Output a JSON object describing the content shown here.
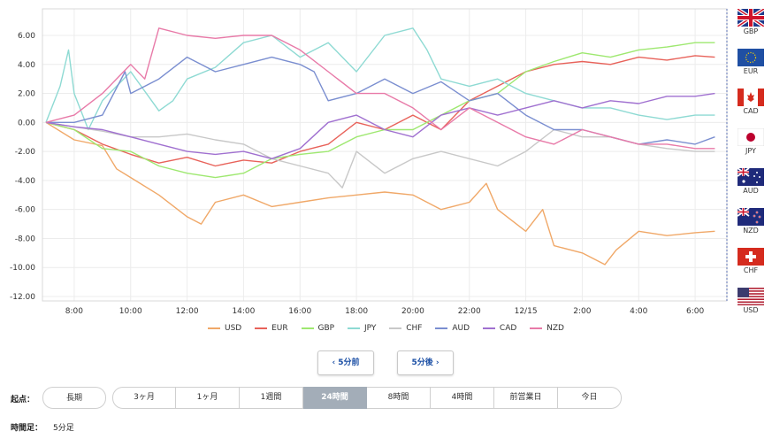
{
  "chart_data": {
    "type": "line",
    "title": "",
    "xlabel": "",
    "ylabel": "",
    "ylim": [
      -12,
      8
    ],
    "y_ticks": [
      "6.00",
      "4.00",
      "2.00",
      "0.00",
      "-2.00",
      "-4.00",
      "-6.00",
      "-8.00",
      "-10.00",
      "-12.00"
    ],
    "x_ticks": [
      "8:00",
      "10:00",
      "12:00",
      "14:00",
      "16:00",
      "18:00",
      "20:00",
      "22:00",
      "12/15",
      "2:00",
      "4:00",
      "6:00"
    ],
    "x_tick_hours": [
      1,
      3,
      5,
      7,
      9,
      11,
      13,
      15,
      17,
      19,
      21,
      23
    ],
    "x_range_hours": [
      0,
      24
    ],
    "grid": true,
    "series": [
      {
        "name": "USD",
        "color": "#f0a868",
        "points": [
          [
            0,
            0
          ],
          [
            1,
            -1.2
          ],
          [
            2,
            -1.6
          ],
          [
            2.5,
            -3.2
          ],
          [
            3,
            -3.8
          ],
          [
            4,
            -5.0
          ],
          [
            5,
            -6.5
          ],
          [
            5.5,
            -7.0
          ],
          [
            6,
            -5.5
          ],
          [
            7,
            -5.0
          ],
          [
            8,
            -5.8
          ],
          [
            9,
            -5.5
          ],
          [
            10,
            -5.2
          ],
          [
            11,
            -5.0
          ],
          [
            12,
            -4.8
          ],
          [
            13,
            -5.0
          ],
          [
            14,
            -6.0
          ],
          [
            15,
            -5.5
          ],
          [
            15.6,
            -4.2
          ],
          [
            16,
            -6.0
          ],
          [
            17,
            -7.5
          ],
          [
            17.6,
            -6.0
          ],
          [
            18,
            -8.5
          ],
          [
            19,
            -9.0
          ],
          [
            19.8,
            -9.8
          ],
          [
            20.2,
            -8.8
          ],
          [
            21,
            -7.5
          ],
          [
            22,
            -7.8
          ],
          [
            23,
            -7.6
          ],
          [
            23.7,
            -7.5
          ]
        ]
      },
      {
        "name": "EUR",
        "color": "#e8625a",
        "points": [
          [
            0,
            0
          ],
          [
            1,
            -0.5
          ],
          [
            2,
            -1.5
          ],
          [
            3,
            -2.2
          ],
          [
            4,
            -2.8
          ],
          [
            5,
            -2.4
          ],
          [
            6,
            -3.0
          ],
          [
            7,
            -2.6
          ],
          [
            8,
            -2.8
          ],
          [
            9,
            -2.0
          ],
          [
            10,
            -1.5
          ],
          [
            11,
            0.0
          ],
          [
            12,
            -0.5
          ],
          [
            13,
            0.5
          ],
          [
            14,
            -0.5
          ],
          [
            15,
            1.5
          ],
          [
            16,
            2.5
          ],
          [
            17,
            3.5
          ],
          [
            18,
            4.0
          ],
          [
            19,
            4.2
          ],
          [
            20,
            4.0
          ],
          [
            21,
            4.5
          ],
          [
            22,
            4.3
          ],
          [
            23,
            4.6
          ],
          [
            23.7,
            4.5
          ]
        ]
      },
      {
        "name": "GBP",
        "color": "#9ee870",
        "points": [
          [
            0,
            0
          ],
          [
            1,
            -0.5
          ],
          [
            2,
            -1.8
          ],
          [
            3,
            -2.0
          ],
          [
            4,
            -3.0
          ],
          [
            5,
            -3.5
          ],
          [
            6,
            -3.8
          ],
          [
            7,
            -3.5
          ],
          [
            8,
            -2.5
          ],
          [
            9,
            -2.2
          ],
          [
            10,
            -2.0
          ],
          [
            11,
            -1.0
          ],
          [
            12,
            -0.5
          ],
          [
            13,
            -0.5
          ],
          [
            14,
            0.5
          ],
          [
            15,
            1.5
          ],
          [
            16,
            2.0
          ],
          [
            17,
            3.5
          ],
          [
            18,
            4.2
          ],
          [
            19,
            4.8
          ],
          [
            20,
            4.5
          ],
          [
            21,
            5.0
          ],
          [
            22,
            5.2
          ],
          [
            23,
            5.5
          ],
          [
            23.7,
            5.5
          ]
        ]
      },
      {
        "name": "JPY",
        "color": "#8edad3",
        "points": [
          [
            0,
            0
          ],
          [
            0.5,
            2.5
          ],
          [
            0.8,
            5.0
          ],
          [
            1,
            2.0
          ],
          [
            1.5,
            -0.5
          ],
          [
            2,
            1.5
          ],
          [
            3,
            3.5
          ],
          [
            4,
            0.8
          ],
          [
            4.5,
            1.5
          ],
          [
            5,
            3.0
          ],
          [
            6,
            3.8
          ],
          [
            7,
            5.5
          ],
          [
            8,
            6.0
          ],
          [
            9,
            4.5
          ],
          [
            10,
            5.5
          ],
          [
            11,
            3.5
          ],
          [
            12,
            6.0
          ],
          [
            13,
            6.5
          ],
          [
            13.5,
            5.0
          ],
          [
            14,
            3.0
          ],
          [
            15,
            2.5
          ],
          [
            16,
            3.0
          ],
          [
            17,
            2.0
          ],
          [
            18,
            1.5
          ],
          [
            19,
            1.0
          ],
          [
            20,
            1.0
          ],
          [
            21,
            0.5
          ],
          [
            22,
            0.2
          ],
          [
            23,
            0.5
          ],
          [
            23.7,
            0.5
          ]
        ]
      },
      {
        "name": "CHF",
        "color": "#c8c8c8",
        "points": [
          [
            0,
            0
          ],
          [
            1,
            -0.3
          ],
          [
            2,
            -0.6
          ],
          [
            3,
            -1.0
          ],
          [
            4,
            -1.0
          ],
          [
            5,
            -0.8
          ],
          [
            6,
            -1.2
          ],
          [
            7,
            -1.5
          ],
          [
            8,
            -2.5
          ],
          [
            9,
            -3.0
          ],
          [
            10,
            -3.5
          ],
          [
            10.5,
            -4.5
          ],
          [
            11,
            -2.0
          ],
          [
            12,
            -3.5
          ],
          [
            13,
            -2.5
          ],
          [
            14,
            -2.0
          ],
          [
            15,
            -2.5
          ],
          [
            16,
            -3.0
          ],
          [
            17,
            -2.0
          ],
          [
            18,
            -0.5
          ],
          [
            19,
            -1.0
          ],
          [
            20,
            -1.0
          ],
          [
            21,
            -1.5
          ],
          [
            22,
            -1.8
          ],
          [
            23,
            -2.0
          ],
          [
            23.7,
            -2.0
          ]
        ]
      },
      {
        "name": "AUD",
        "color": "#7a8ed0",
        "points": [
          [
            0,
            0
          ],
          [
            1,
            0.0
          ],
          [
            2,
            0.5
          ],
          [
            2.8,
            3.5
          ],
          [
            3,
            2.0
          ],
          [
            4,
            3.0
          ],
          [
            5,
            4.5
          ],
          [
            6,
            3.5
          ],
          [
            7,
            4.0
          ],
          [
            8,
            4.5
          ],
          [
            9,
            4.0
          ],
          [
            9.5,
            3.5
          ],
          [
            10,
            1.5
          ],
          [
            11,
            2.0
          ],
          [
            12,
            3.0
          ],
          [
            13,
            2.0
          ],
          [
            14,
            2.8
          ],
          [
            15,
            1.5
          ],
          [
            16,
            2.0
          ],
          [
            17,
            0.5
          ],
          [
            18,
            -0.5
          ],
          [
            19,
            -0.5
          ],
          [
            20,
            -1.0
          ],
          [
            21,
            -1.5
          ],
          [
            22,
            -1.2
          ],
          [
            23,
            -1.5
          ],
          [
            23.7,
            -1.0
          ]
        ]
      },
      {
        "name": "CAD",
        "color": "#a070d0",
        "points": [
          [
            0,
            0
          ],
          [
            1,
            -0.3
          ],
          [
            2,
            -0.5
          ],
          [
            3,
            -1.0
          ],
          [
            4,
            -1.5
          ],
          [
            5,
            -2.0
          ],
          [
            6,
            -2.2
          ],
          [
            7,
            -2.0
          ],
          [
            8,
            -2.5
          ],
          [
            9,
            -1.8
          ],
          [
            10,
            0.0
          ],
          [
            11,
            0.5
          ],
          [
            12,
            -0.5
          ],
          [
            13,
            -1.0
          ],
          [
            14,
            0.5
          ],
          [
            15,
            1.0
          ],
          [
            16,
            0.5
          ],
          [
            17,
            1.0
          ],
          [
            18,
            1.5
          ],
          [
            19,
            1.0
          ],
          [
            20,
            1.5
          ],
          [
            21,
            1.3
          ],
          [
            22,
            1.8
          ],
          [
            23,
            1.8
          ],
          [
            23.7,
            2.0
          ]
        ]
      },
      {
        "name": "NZD",
        "color": "#e87aa8",
        "points": [
          [
            0,
            0
          ],
          [
            1,
            0.5
          ],
          [
            2,
            2.0
          ],
          [
            3,
            4.0
          ],
          [
            3.5,
            3.0
          ],
          [
            4,
            6.5
          ],
          [
            5,
            6.0
          ],
          [
            6,
            5.8
          ],
          [
            7,
            6.0
          ],
          [
            8,
            6.0
          ],
          [
            9,
            5.0
          ],
          [
            10,
            3.5
          ],
          [
            11,
            2.0
          ],
          [
            12,
            2.0
          ],
          [
            13,
            1.0
          ],
          [
            14,
            -0.5
          ],
          [
            15,
            1.0
          ],
          [
            16,
            0.0
          ],
          [
            17,
            -1.0
          ],
          [
            18,
            -1.5
          ],
          [
            19,
            -0.5
          ],
          [
            20,
            -1.0
          ],
          [
            21,
            -1.5
          ],
          [
            22,
            -1.5
          ],
          [
            23,
            -1.8
          ],
          [
            23.7,
            -1.8
          ]
        ]
      }
    ]
  },
  "flags": [
    {
      "code": "GBP",
      "icon": "uk-flag-icon"
    },
    {
      "code": "EUR",
      "icon": "eu-flag-icon"
    },
    {
      "code": "CAD",
      "icon": "canada-flag-icon"
    },
    {
      "code": "JPY",
      "icon": "japan-flag-icon"
    },
    {
      "code": "AUD",
      "icon": "australia-flag-icon"
    },
    {
      "code": "NZD",
      "icon": "new-zealand-flag-icon"
    },
    {
      "code": "CHF",
      "icon": "switzerland-flag-icon"
    },
    {
      "code": "USD",
      "icon": "usa-flag-icon"
    }
  ],
  "nav": {
    "prev": "‹ 5分前",
    "next": "5分後 ›"
  },
  "controls": {
    "start_label": "起点：",
    "long_term": "長期",
    "tabs": [
      "3ヶ月",
      "1ヶ月",
      "1週間",
      "24時間",
      "8時間",
      "4時間",
      "前営業日",
      "今日"
    ],
    "active_tab": "24時間",
    "timeframe_label": "時間足：",
    "timeframe_value": "5分足"
  }
}
